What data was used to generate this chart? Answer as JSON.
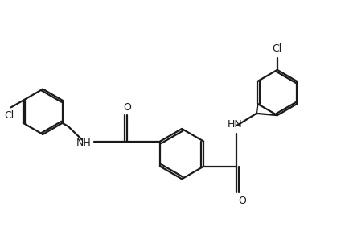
{
  "background_color": "#ffffff",
  "line_color": "#1a1a1a",
  "line_width": 1.6,
  "fig_width": 4.35,
  "fig_height": 3.13,
  "dpi": 100,
  "font_size": 9,
  "xlim": [
    0,
    10
  ],
  "ylim": [
    0,
    7.2
  ]
}
